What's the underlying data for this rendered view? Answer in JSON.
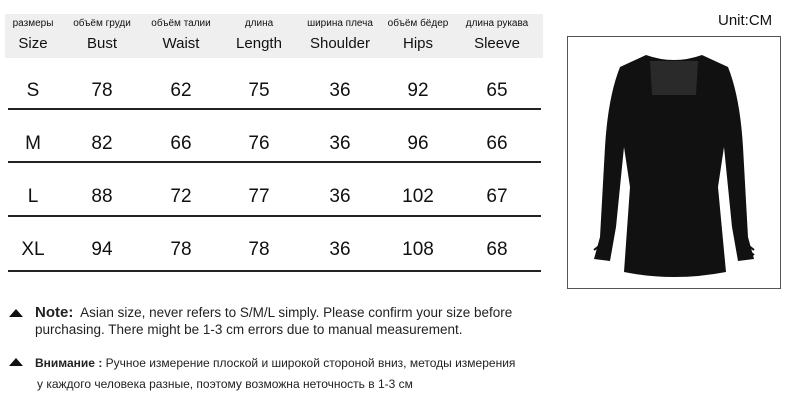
{
  "unit_label": "Unit:CM",
  "table": {
    "headers": [
      {
        "ru": "размеры",
        "en": "Size"
      },
      {
        "ru": "объём груди",
        "en": "Bust"
      },
      {
        "ru": "объём талии",
        "en": "Waist"
      },
      {
        "ru": "длина",
        "en": "Length"
      },
      {
        "ru": "ширина плеча",
        "en": "Shoulder"
      },
      {
        "ru": "объём бёдер",
        "en": "Hips"
      },
      {
        "ru": "длина рукава",
        "en": "Sleeve"
      }
    ],
    "rows": [
      [
        "S",
        "78",
        "62",
        "75",
        "36",
        "92",
        "65"
      ],
      [
        "M",
        "82",
        "66",
        "76",
        "36",
        "96",
        "66"
      ],
      [
        "L",
        "88",
        "72",
        "77",
        "36",
        "102",
        "67"
      ],
      [
        "XL",
        "94",
        "78",
        "78",
        "36",
        "108",
        "68"
      ]
    ]
  },
  "notes": {
    "en_label": "Note:",
    "en_line1": "Asian size, never refers to S/M/L simply. Please confirm your size before",
    "en_line2": "purchasing. There might be 1-3 cm errors due to manual measurement.",
    "ru_label": "Внимание :",
    "ru_line1": "Ручное измерение плоской и широкой стороной вниз, методы измерения",
    "ru_line2": "у каждого человека разные, поэтому возможна неточность в 1-3 см"
  },
  "colors": {
    "header_bg": "#efefef",
    "dress": "#111111"
  }
}
